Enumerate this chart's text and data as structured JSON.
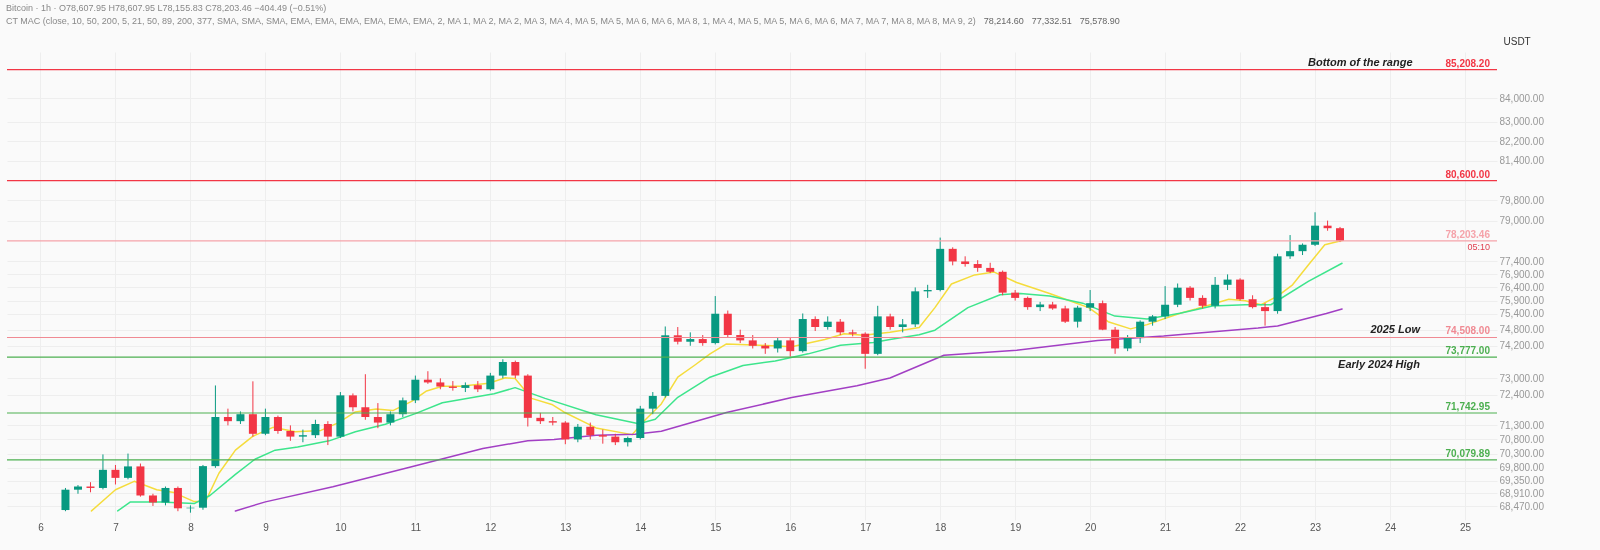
{
  "chart_data": {
    "type": "candlestick",
    "title": "Bitcoin · 1h · O78,607.95 H78,607.95 L78,155.83 C78,203.46 −404.49 (−0.51%)",
    "subtitle": "CT MAC (close, 10, 50, 200, 5, 21, 50, 89, 200, 377, SMA, SMA, SMA, EMA, EMA, EMA, EMA, EMA, EMA, 2, MA 1, MA 2, MA 2, MA 3, MA 4, MA 5, MA 5, MA 6, MA 6, MA 8, 1, MA 4, MA 5, MA 5, MA 6, MA 6, MA 7, MA 7, MA 8, MA 8, MA 9, 2)",
    "ylabel": "USDT",
    "x": [
      6.333,
      6.5,
      6.667,
      6.833,
      7,
      7.167,
      7.333,
      7.5,
      7.667,
      7.833,
      8,
      8.167,
      8.333,
      8.5,
      8.667,
      8.833,
      9,
      9.167,
      9.333,
      9.5,
      9.667,
      9.833,
      10,
      10.167,
      10.333,
      10.5,
      10.667,
      10.833,
      11,
      11.167,
      11.333,
      11.5,
      11.667,
      11.833,
      12,
      12.167,
      12.333,
      12.5,
      12.667,
      12.833,
      13,
      13.167,
      13.333,
      13.5,
      13.667,
      13.833,
      14,
      14.167,
      14.333,
      14.5,
      14.667,
      14.833,
      15,
      15.167,
      15.333,
      15.5,
      15.667,
      15.833,
      16,
      16.167,
      16.333,
      16.5,
      16.667,
      16.833,
      17,
      17.167,
      17.333,
      17.5,
      17.667,
      17.833,
      18,
      18.167,
      18.333,
      18.5,
      18.667,
      18.833,
      19,
      19.167,
      19.333,
      19.5,
      19.667,
      19.833,
      20,
      20.167,
      20.333,
      20.5,
      20.667,
      20.833,
      21,
      21.167,
      21.333,
      21.5,
      21.667,
      21.833,
      22,
      22.167,
      22.333,
      22.5,
      22.667,
      22.833,
      23,
      23.167,
      23.333
    ],
    "ohlc": [
      [
        68340,
        69100,
        68300,
        69040
      ],
      [
        69040,
        69200,
        68900,
        69150
      ],
      [
        69150,
        69300,
        68950,
        69100
      ],
      [
        69100,
        70270,
        69050,
        69730
      ],
      [
        69730,
        69900,
        69220,
        69450
      ],
      [
        69450,
        70300,
        69400,
        69850
      ],
      [
        69850,
        69950,
        68800,
        68840
      ],
      [
        68840,
        68900,
        68480,
        68600
      ],
      [
        68600,
        69150,
        68500,
        69100
      ],
      [
        69100,
        69150,
        68300,
        68400
      ],
      [
        68400,
        68500,
        68250,
        68420
      ],
      [
        68420,
        69900,
        68350,
        69860
      ],
      [
        69860,
        72740,
        69800,
        71600
      ],
      [
        71600,
        71900,
        71300,
        71450
      ],
      [
        71450,
        71800,
        71350,
        71700
      ],
      [
        71700,
        72890,
        70900,
        71000
      ],
      [
        71000,
        71900,
        70950,
        71600
      ],
      [
        71600,
        71650,
        71000,
        71100
      ],
      [
        71100,
        71300,
        70750,
        70900
      ],
      [
        70900,
        71150,
        70700,
        70950
      ],
      [
        70950,
        71500,
        70850,
        71350
      ],
      [
        71350,
        71450,
        70600,
        70900
      ],
      [
        70900,
        72500,
        70850,
        72380
      ],
      [
        72380,
        72450,
        71800,
        71950
      ],
      [
        71950,
        73150,
        71500,
        71600
      ],
      [
        71600,
        72100,
        71200,
        71400
      ],
      [
        71400,
        71800,
        71300,
        71700
      ],
      [
        71700,
        72300,
        71600,
        72200
      ],
      [
        72200,
        73100,
        72100,
        72950
      ],
      [
        72950,
        73260,
        72800,
        72850
      ],
      [
        72850,
        73000,
        72600,
        72700
      ],
      [
        72700,
        72900,
        72550,
        72650
      ],
      [
        72650,
        72850,
        72500,
        72750
      ],
      [
        72750,
        72900,
        72500,
        72600
      ],
      [
        72600,
        73200,
        72550,
        73100
      ],
      [
        73100,
        73700,
        73000,
        73600
      ],
      [
        73600,
        73650,
        73000,
        73100
      ],
      [
        73100,
        73150,
        71260,
        71570
      ],
      [
        71570,
        71750,
        71350,
        71450
      ],
      [
        71450,
        71600,
        71300,
        71400
      ],
      [
        71400,
        71450,
        70630,
        70800
      ],
      [
        70800,
        71350,
        70700,
        71250
      ],
      [
        71250,
        71400,
        70800,
        70950
      ],
      [
        70950,
        71150,
        70650,
        70900
      ],
      [
        70900,
        71000,
        70600,
        70700
      ],
      [
        70700,
        70900,
        70550,
        70850
      ],
      [
        70850,
        72000,
        70800,
        71900
      ],
      [
        71900,
        72500,
        71700,
        72360
      ],
      [
        72360,
        74920,
        72300,
        74590
      ],
      [
        74590,
        74900,
        74250,
        74350
      ],
      [
        74350,
        74700,
        74200,
        74450
      ],
      [
        74450,
        74600,
        74200,
        74300
      ],
      [
        74300,
        76070,
        74250,
        75400
      ],
      [
        75400,
        75520,
        74500,
        74600
      ],
      [
        74600,
        74800,
        74300,
        74400
      ],
      [
        74400,
        74600,
        74100,
        74200
      ],
      [
        74200,
        74300,
        73900,
        74100
      ],
      [
        74100,
        74500,
        73950,
        74400
      ],
      [
        74400,
        74500,
        73800,
        74000
      ],
      [
        74000,
        75410,
        73950,
        75200
      ],
      [
        75200,
        75300,
        74750,
        74900
      ],
      [
        74900,
        75300,
        74800,
        75100
      ],
      [
        75100,
        75200,
        74600,
        74700
      ],
      [
        74700,
        74800,
        74550,
        74650
      ],
      [
        74650,
        74700,
        73350,
        73900
      ],
      [
        73900,
        75700,
        73850,
        75300
      ],
      [
        75300,
        75400,
        74800,
        74900
      ],
      [
        74900,
        75200,
        74700,
        75000
      ],
      [
        75000,
        76400,
        74900,
        76250
      ],
      [
        76250,
        76500,
        76000,
        76300
      ],
      [
        76300,
        78330,
        76250,
        77890
      ],
      [
        77890,
        77950,
        77250,
        77400
      ],
      [
        77400,
        77600,
        77200,
        77300
      ],
      [
        77300,
        77450,
        77000,
        77150
      ],
      [
        77150,
        77350,
        76950,
        77000
      ],
      [
        77000,
        77050,
        76100,
        76200
      ],
      [
        76200,
        76300,
        75900,
        76000
      ],
      [
        76000,
        76050,
        75550,
        75650
      ],
      [
        75650,
        75850,
        75500,
        75750
      ],
      [
        75750,
        75850,
        75550,
        75600
      ],
      [
        75600,
        75700,
        75050,
        75100
      ],
      [
        75100,
        75700,
        74880,
        75630
      ],
      [
        75630,
        76300,
        75500,
        75800
      ],
      [
        75800,
        75900,
        74780,
        74800
      ],
      [
        74800,
        74900,
        73900,
        74100
      ],
      [
        74100,
        74600,
        74000,
        74500
      ],
      [
        74500,
        75150,
        74300,
        75100
      ],
      [
        75100,
        75350,
        74950,
        75300
      ],
      [
        75300,
        76450,
        75200,
        75740
      ],
      [
        75740,
        76550,
        75650,
        76390
      ],
      [
        76390,
        76450,
        75900,
        76000
      ],
      [
        76000,
        76100,
        75600,
        75700
      ],
      [
        75700,
        76800,
        75600,
        76500
      ],
      [
        76500,
        76900,
        76300,
        76700
      ],
      [
        76700,
        76750,
        75900,
        75950
      ],
      [
        75950,
        76100,
        75600,
        75650
      ],
      [
        75650,
        75800,
        74950,
        75500
      ],
      [
        75500,
        77700,
        75400,
        77600
      ],
      [
        77600,
        78430,
        77500,
        77800
      ],
      [
        77800,
        78100,
        77650,
        78050
      ],
      [
        78050,
        79330,
        78000,
        78800
      ],
      [
        78800,
        79000,
        78600,
        78700
      ],
      [
        78700,
        78750,
        78155.83,
        78203.46
      ]
    ],
    "series": [
      {
        "type": "line",
        "color": "#f5dc3c",
        "x": [
          6.68,
          7,
          7.25,
          7.55,
          7.78,
          8.05,
          8.2,
          8.38,
          8.6,
          8.83,
          9.1,
          9.4,
          9.74,
          9.97,
          10.2,
          10.48,
          10.7,
          10.95,
          11.15,
          11.36,
          11.6,
          11.98,
          12.2,
          12.33,
          12.55,
          12.82,
          12.98,
          13.41,
          13.89,
          14.07,
          14.28,
          14.5,
          14.72,
          14.93,
          15.15,
          15.59,
          16.02,
          16.46,
          16.72,
          16.98,
          17.33,
          17.5,
          17.72,
          17.93,
          18.15,
          18.46,
          18.72,
          19.02,
          19.46,
          19.67,
          19.98,
          20.24,
          20.54,
          20.76,
          21.2,
          21.41,
          21.85,
          22.07,
          22.28,
          22.5,
          22.7,
          22.91,
          23.13,
          23.36
        ],
        "values": [
          68310,
          69040,
          69330,
          69040,
          68940,
          68630,
          68630,
          69610,
          70420,
          70910,
          71230,
          71070,
          71120,
          71390,
          71780,
          71890,
          71830,
          72160,
          72540,
          72710,
          72710,
          72820,
          73020,
          72990,
          72270,
          72050,
          71780,
          71210,
          70970,
          71510,
          72070,
          73040,
          73470,
          73900,
          74270,
          74220,
          74160,
          74430,
          74650,
          74590,
          74700,
          74780,
          74880,
          75630,
          76530,
          76880,
          76990,
          76590,
          76170,
          75950,
          75630,
          75100,
          74830,
          74990,
          75420,
          75580,
          75950,
          75890,
          75740,
          76070,
          76500,
          77260,
          78050,
          78215
        ]
      },
      {
        "type": "line",
        "color": "#3de58c",
        "x": [
          7.03,
          7.2,
          7.6,
          8.05,
          8.26,
          8.6,
          8.86,
          9.13,
          9.43,
          9.85,
          10.2,
          10.6,
          11,
          11.36,
          12.05,
          12.33,
          12.73,
          13.41,
          13.98,
          14.2,
          14.5,
          14.93,
          15.37,
          15.8,
          16.24,
          16.67,
          17.11,
          17.33,
          17.72,
          17.93,
          18.37,
          18.8,
          19.07,
          19.46,
          19.9,
          20.33,
          20.76,
          21.2,
          21.63,
          22.07,
          22.41,
          22.91,
          23.36
        ],
        "values": [
          68310,
          68620,
          68620,
          68560,
          68840,
          69570,
          70100,
          70420,
          70530,
          70750,
          71070,
          71340,
          71720,
          72110,
          72440,
          72660,
          72270,
          71680,
          71360,
          71520,
          72310,
          73040,
          73470,
          73640,
          73900,
          74220,
          74320,
          74430,
          74610,
          74780,
          75630,
          76120,
          76170,
          76070,
          75800,
          75310,
          75200,
          75420,
          75690,
          75740,
          75740,
          76630,
          77330
        ]
      },
      {
        "type": "line",
        "color": "#a23fc4",
        "x": [
          8.6,
          9,
          9.9,
          10.95,
          11.9,
          12.5,
          12.85,
          13.41,
          13.93,
          14.28,
          15.15,
          16.02,
          16.89,
          17.33,
          18.05,
          19.02,
          20.1,
          20.98,
          21.41,
          22.24,
          22.5,
          23.15,
          23.36
        ],
        "values": [
          68310,
          68620,
          69140,
          69840,
          70480,
          70750,
          70800,
          70950,
          70980,
          71090,
          71760,
          72300,
          72730,
          73010,
          73850,
          74030,
          74400,
          74560,
          74670,
          74860,
          74940,
          75410,
          75580
        ]
      }
    ],
    "ref_lines": [
      {
        "axis": "y",
        "value": 85208.2,
        "label": "85,208.20",
        "color": "#f23645"
      },
      {
        "axis": "y",
        "value": 80600,
        "label": "80,600.00",
        "color": "#f23645"
      },
      {
        "axis": "y",
        "value": 78203.46,
        "label": "78,203.46",
        "color": "#f5a3aa"
      },
      {
        "axis": "y",
        "value": 74508,
        "label": "74,508.00",
        "color": "#f08a93"
      },
      {
        "axis": "y",
        "value": 73777,
        "label": "73,777.00",
        "color": "#4caf50"
      },
      {
        "axis": "y",
        "value": 71742.95,
        "label": "71,742.95",
        "color": "#4caf50"
      },
      {
        "axis": "y",
        "value": 70079.89,
        "label": "70,079.89",
        "color": "#4caf50"
      }
    ],
    "annotations": [
      {
        "text": "Bottom of the range",
        "x": 24.3,
        "y": 85208.2
      },
      {
        "text": "2025 Low",
        "x": 24.4,
        "y": 74508
      },
      {
        "text": "Early 2024 High",
        "x": 24.4,
        "y": 73777
      },
      {
        "text": "05:10",
        "x": 25.36,
        "y": 78203.46
      },
      "78,214.60",
      "77,332.51",
      "75,578.90"
    ],
    "log": true,
    "grid": true,
    "xlim": [
      5.62,
      25.36
    ],
    "xticks": [
      6,
      7,
      8,
      9,
      10,
      11,
      12,
      13,
      14,
      15,
      16,
      17,
      18,
      19,
      20,
      21,
      22,
      23,
      24,
      25
    ],
    "ylim": [
      68000,
      85960
    ],
    "yticks": [
      {
        "value": 68470,
        "label": "68,470.00"
      },
      {
        "value": 68910,
        "label": "68,910.00"
      },
      {
        "value": 69350,
        "label": "69,350.00"
      },
      {
        "value": 69800,
        "label": "69,800.00"
      },
      {
        "value": 70300,
        "label": "70,300.00"
      },
      {
        "value": 70800,
        "label": "70,800.00"
      },
      {
        "value": 71300,
        "label": "71,300.00"
      },
      {
        "value": 72400,
        "label": "72,400.00"
      },
      {
        "value": 73000,
        "label": "73,000.00"
      },
      {
        "value": 74200,
        "label": "74,200.00"
      },
      {
        "value": 74800,
        "label": "74,800.00"
      },
      {
        "value": 75400,
        "label": "75,400.00"
      },
      {
        "value": 75900,
        "label": "75,900.00"
      },
      {
        "value": 76400,
        "label": "76,400.00"
      },
      {
        "value": 76900,
        "label": "76,900.00"
      },
      {
        "value": 77400,
        "label": "77,400.00"
      },
      {
        "value": 79000,
        "label": "79,000.00"
      },
      {
        "value": 79800,
        "label": "79,800.00"
      },
      {
        "value": 81400,
        "label": "81,400.00"
      },
      {
        "value": 82200,
        "label": "82,200.00"
      },
      {
        "value": 83000,
        "label": "83,000.00"
      },
      {
        "value": 84000,
        "label": "84,000.00"
      }
    ]
  }
}
